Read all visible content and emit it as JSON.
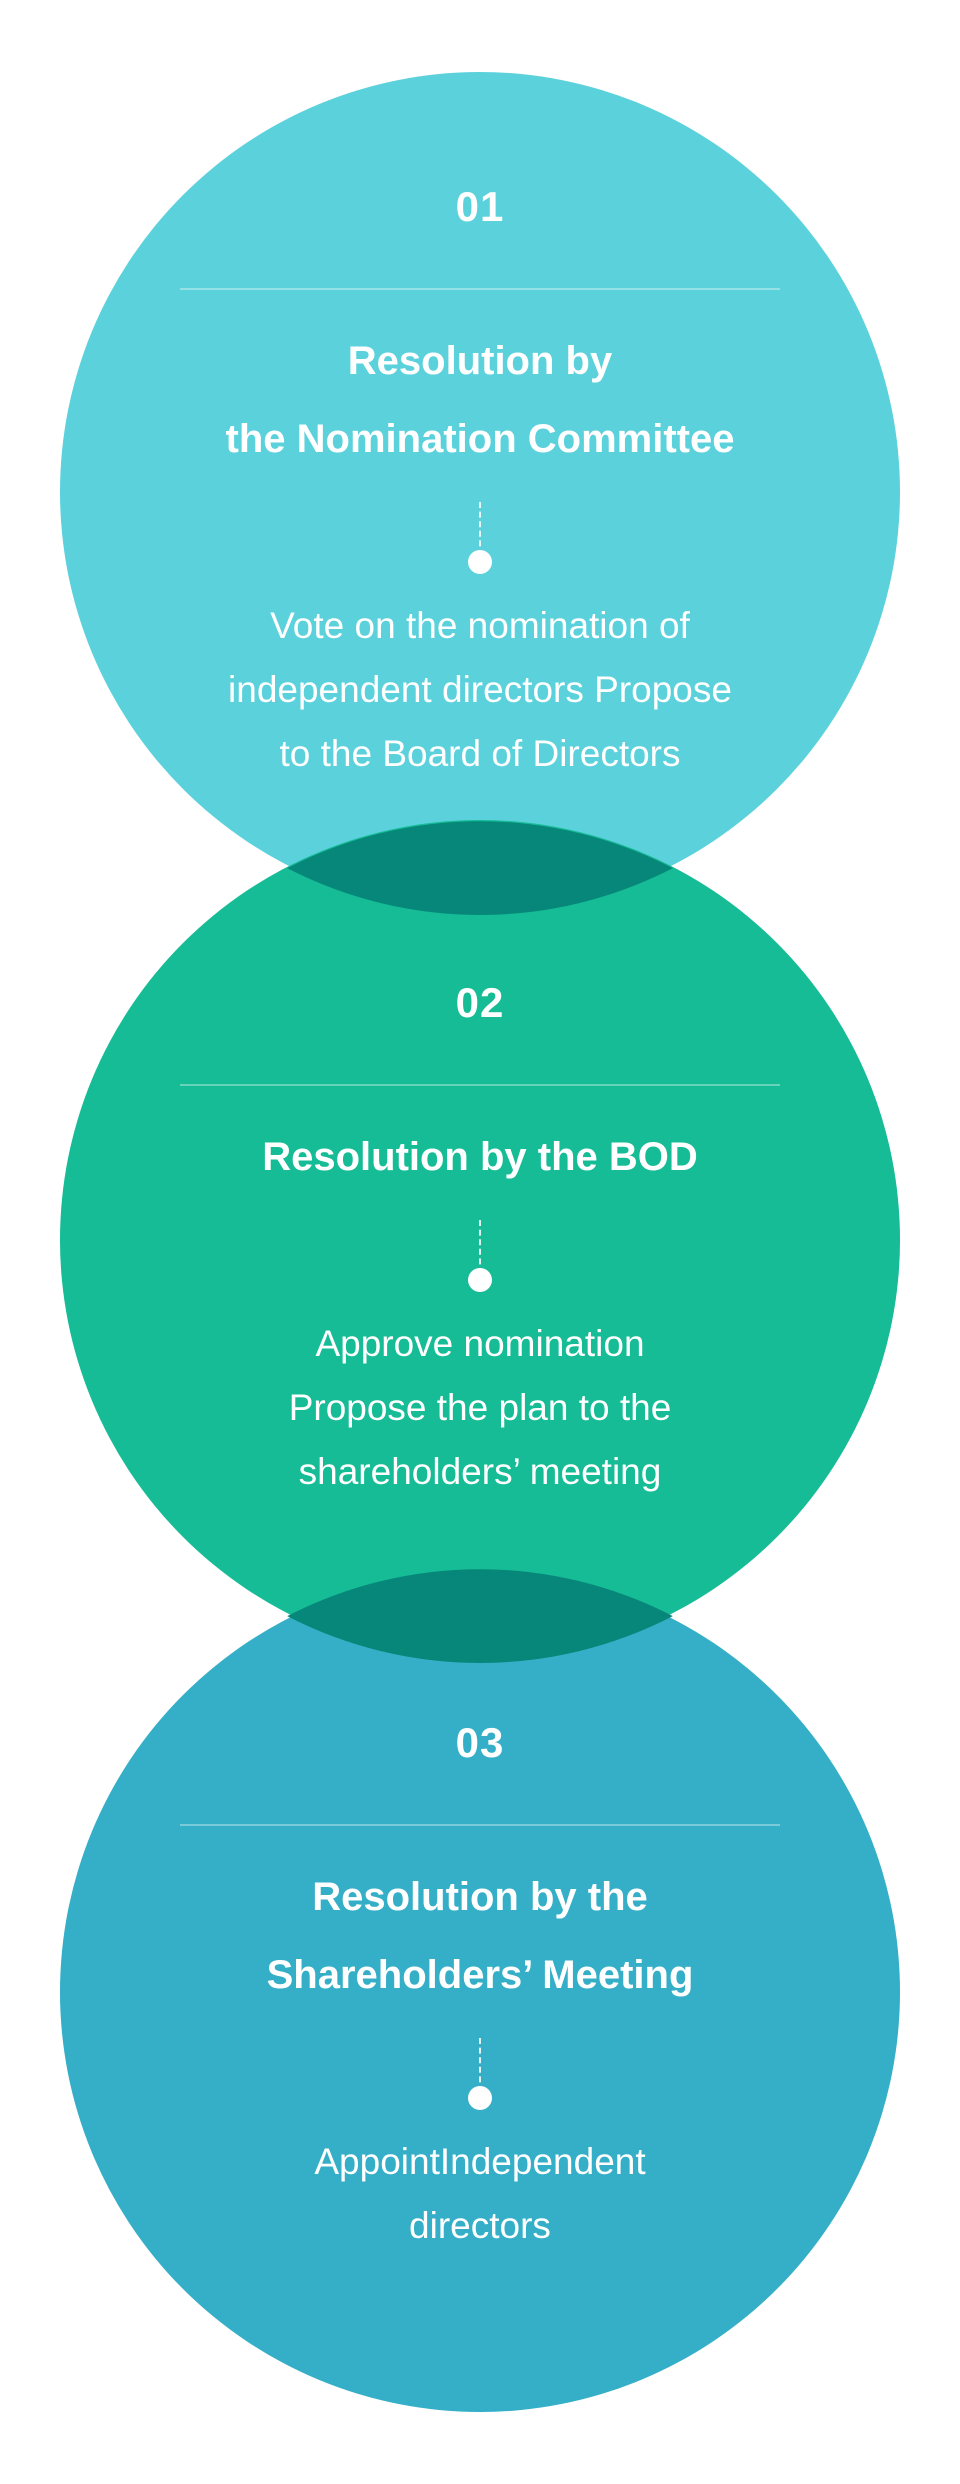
{
  "colors": {
    "step1": "#5bd1dc",
    "step2": "#15bc95",
    "step3": "#34afc7",
    "overlap": "#07877a",
    "text": "#ffffff"
  },
  "steps": [
    {
      "number": "01",
      "title_lines": [
        "Resolution by",
        "the Nomination Committee"
      ],
      "desc_lines": [
        "Vote on the nomination of",
        "independent directors Propose",
        "to the Board of Directors"
      ]
    },
    {
      "number": "02",
      "title_lines": [
        "Resolution by the BOD"
      ],
      "desc_lines": [
        "Approve nomination",
        "Propose the plan to the",
        "shareholders’ meeting"
      ]
    },
    {
      "number": "03",
      "title_lines": [
        "Resolution by the",
        "Shareholders’ Meeting"
      ],
      "desc_lines": [
        "AppointIndependent",
        "directors"
      ]
    }
  ]
}
